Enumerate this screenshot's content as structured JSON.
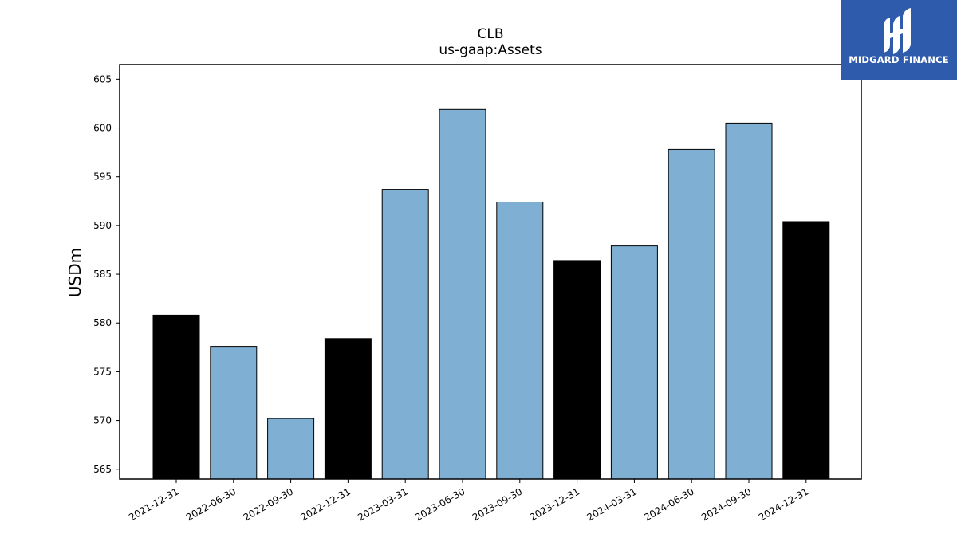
{
  "brand": {
    "name": "MIDGARD FINANCE",
    "logo_bg": "#2f5bad",
    "logo_fg": "#ffffff"
  },
  "chart_data": {
    "type": "bar",
    "title": "CLB",
    "subtitle": "us-gaap:Assets",
    "xlabel": "",
    "ylabel": "USDm",
    "ylim": [
      564,
      606.5
    ],
    "yticks": [
      565,
      570,
      575,
      580,
      585,
      590,
      595,
      600,
      605
    ],
    "categories": [
      "2021-12-31",
      "2022-06-30",
      "2022-09-30",
      "2022-12-31",
      "2023-03-31",
      "2023-06-30",
      "2023-09-30",
      "2023-12-31",
      "2024-03-31",
      "2024-06-30",
      "2024-09-30",
      "2024-12-31"
    ],
    "values": [
      580.8,
      577.6,
      570.2,
      578.4,
      593.7,
      601.9,
      592.4,
      586.4,
      587.9,
      597.8,
      600.5,
      590.4
    ],
    "bar_colors": [
      "#000000",
      "#7fb0d3",
      "#7fb0d3",
      "#000000",
      "#7fb0d3",
      "#7fb0d3",
      "#7fb0d3",
      "#000000",
      "#7fb0d3",
      "#7fb0d3",
      "#7fb0d3",
      "#000000"
    ],
    "grid": false,
    "legend": "none"
  }
}
